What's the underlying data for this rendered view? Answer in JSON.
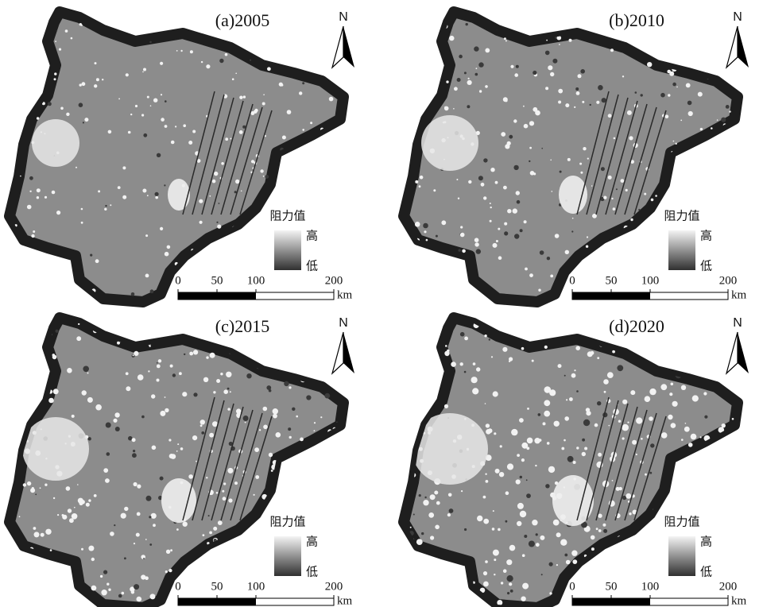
{
  "panels": [
    {
      "title": "(a)2005",
      "north": "N",
      "legend": {
        "title": "阻力值",
        "high": "高",
        "low": "低"
      },
      "scale": {
        "ticks": [
          0,
          50,
          100,
          200
        ],
        "unit": "km"
      }
    },
    {
      "title": "(b)2010",
      "north": "N",
      "legend": {
        "title": "阻力值",
        "high": "高",
        "low": "低"
      },
      "scale": {
        "ticks": [
          0,
          50,
          100,
          200
        ],
        "unit": "km"
      }
    },
    {
      "title": "(c)2015",
      "north": "N",
      "legend": {
        "title": "阻力值",
        "high": "高",
        "low": "低"
      },
      "scale": {
        "ticks": [
          0,
          50,
          100,
          200
        ],
        "unit": "km"
      }
    },
    {
      "title": "(d)2020",
      "north": "N",
      "legend": {
        "title": "阻力值",
        "high": "高",
        "low": "低"
      },
      "scale": {
        "ticks": [
          0,
          50,
          100,
          200
        ],
        "unit": "km"
      }
    }
  ]
}
